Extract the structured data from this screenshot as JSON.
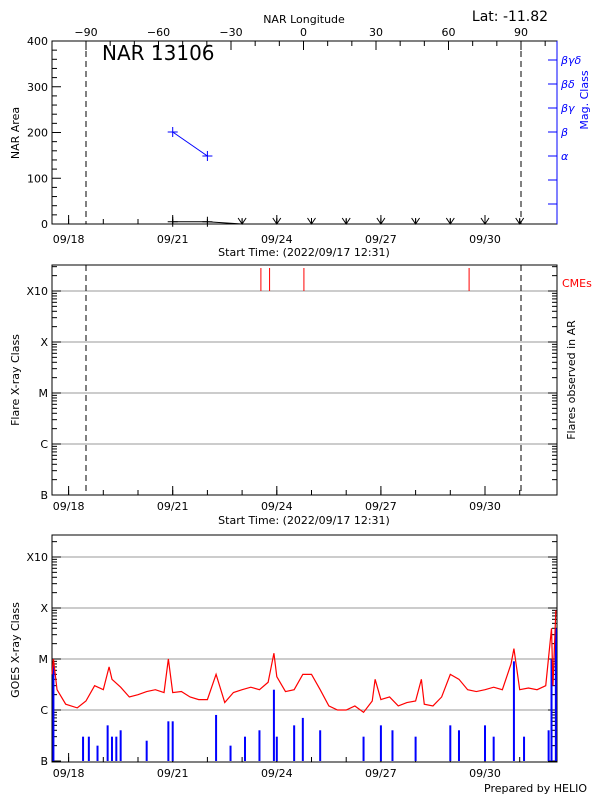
{
  "chart_data": [
    {
      "type": "line",
      "title": "NAR 13106",
      "latitude_label": "Lat: -11.82",
      "top_axis_label": "NAR Longitude",
      "top_ticks": [
        -90,
        -60,
        -30,
        0,
        30,
        60,
        90
      ],
      "ylabel": "NAR Area",
      "ylim": [
        0,
        400
      ],
      "yticks": [
        0,
        100,
        200,
        300,
        400
      ],
      "right_axis_label": "Mag. Class",
      "mag_classes": [
        "α",
        "β",
        "βγ",
        "βδ",
        "βγδ"
      ],
      "xlabel": "Start Time: (2022/09/17 12:31)",
      "xticks": [
        "09/18",
        "09/21",
        "09/24",
        "09/27",
        "09/30"
      ],
      "limb_longitudes": [
        -90,
        90
      ],
      "area_series": [
        [
          "09/21 00:00",
          5
        ],
        [
          "09/22 00:00",
          5
        ],
        [
          "09/23 00:00",
          0
        ]
      ],
      "no_data_markers": [
        "09/23 00:00",
        "09/24 00:00",
        "09/25 00:00",
        "09/26 00:00",
        "09/27 00:00",
        "09/28 00:00",
        "09/29 00:00",
        "09/30 00:00",
        "10/01 00:00"
      ],
      "mag_series": [
        [
          "09/21 00:00",
          "β"
        ],
        [
          "09/22 00:00",
          "α"
        ]
      ],
      "colors": {
        "area": "#000000",
        "mag": "#0000ff"
      }
    },
    {
      "type": "bar",
      "ylabel": "Flare X-ray Class",
      "right_label": "Flares observed in AR",
      "cme_label": "CMEs",
      "yticks": [
        "B",
        "C",
        "M",
        "X",
        "X10"
      ],
      "xlabel": "Start Time: (2022/09/17 12:31)",
      "xticks": [
        "09/18",
        "09/21",
        "09/24",
        "09/27",
        "09/30"
      ],
      "cmes": [
        "09/23 13:00",
        "09/23 19:00",
        "09/24 18:45",
        "09/29 13:00"
      ],
      "flares": [],
      "colors": {
        "cme": "#ff0000"
      }
    },
    {
      "type": "line",
      "ylabel": "GOES X-ray Class",
      "yticks": [
        "B",
        "C",
        "M",
        "X",
        "X10"
      ],
      "xticks": [
        "09/18",
        "09/21",
        "09/24",
        "09/27",
        "09/30"
      ],
      "footer": "Prepared by HELIO",
      "colors": {
        "long": "#ff0000",
        "short": "#0000ff"
      },
      "long_channel": [
        [
          "09/17 12:31",
          5e-06
        ],
        [
          "09/17 13:30",
          1e-05
        ],
        [
          "09/17 16:00",
          2.5e-06
        ],
        [
          "09/17 22:00",
          1.3e-06
        ],
        [
          "09/18 06:00",
          1.1e-06
        ],
        [
          "09/18 12:00",
          1.5e-06
        ],
        [
          "09/18 18:00",
          3e-06
        ],
        [
          "09/19 00:00",
          2.5e-06
        ],
        [
          "09/19 04:00",
          7e-06
        ],
        [
          "09/19 06:00",
          4e-06
        ],
        [
          "09/19 12:00",
          2.8e-06
        ],
        [
          "09/19 18:00",
          1.8e-06
        ],
        [
          "09/20 00:00",
          2e-06
        ],
        [
          "09/20 06:00",
          2.3e-06
        ],
        [
          "09/20 12:00",
          2.5e-06
        ],
        [
          "09/20 18:00",
          2.2e-06
        ],
        [
          "09/20 21:00",
          1e-05
        ],
        [
          "09/21 00:00",
          2.2e-06
        ],
        [
          "09/21 06:00",
          2.3e-06
        ],
        [
          "09/21 12:00",
          1.8e-06
        ],
        [
          "09/21 18:00",
          1.6e-06
        ],
        [
          "09/22 00:00",
          1.6e-06
        ],
        [
          "09/22 06:00",
          5e-06
        ],
        [
          "09/22 12:00",
          1.4e-06
        ],
        [
          "09/22 18:00",
          2.2e-06
        ],
        [
          "09/23 00:00",
          2.5e-06
        ],
        [
          "09/23 06:00",
          2.8e-06
        ],
        [
          "09/23 12:00",
          2.5e-06
        ],
        [
          "09/23 18:00",
          3.5e-06
        ],
        [
          "09/23 22:00",
          1.3e-05
        ],
        [
          "09/24 00:00",
          4.5e-06
        ],
        [
          "09/24 06:00",
          2.3e-06
        ],
        [
          "09/24 12:00",
          2.5e-06
        ],
        [
          "09/24 18:00",
          5e-06
        ],
        [
          "09/25 00:00",
          5e-06
        ],
        [
          "09/25 06:00",
          2.5e-06
        ],
        [
          "09/25 12:00",
          1.2e-06
        ],
        [
          "09/25 18:00",
          1e-06
        ],
        [
          "09/26 00:00",
          1e-06
        ],
        [
          "09/26 06:00",
          1.2e-06
        ],
        [
          "09/26 12:00",
          9e-07
        ],
        [
          "09/26 18:00",
          1.5e-06
        ],
        [
          "09/26 20:00",
          4e-06
        ],
        [
          "09/27 00:00",
          1.6e-06
        ],
        [
          "09/27 06:00",
          1.8e-06
        ],
        [
          "09/27 12:00",
          1.2e-06
        ],
        [
          "09/27 18:00",
          1.4e-06
        ],
        [
          "09/28 00:00",
          1.5e-06
        ],
        [
          "09/28 04:00",
          4e-06
        ],
        [
          "09/28 06:00",
          1.3e-06
        ],
        [
          "09/28 12:00",
          1.2e-06
        ],
        [
          "09/28 18:00",
          1.8e-06
        ],
        [
          "09/29 00:00",
          5e-06
        ],
        [
          "09/29 06:00",
          4e-06
        ],
        [
          "09/29 12:00",
          2.5e-06
        ],
        [
          "09/29 18:00",
          2.3e-06
        ],
        [
          "09/30 00:00",
          2.5e-06
        ],
        [
          "09/30 06:00",
          2.8e-06
        ],
        [
          "09/30 12:00",
          2.5e-06
        ],
        [
          "09/30 18:00",
          8e-06
        ],
        [
          "09/30 20:00",
          1.6e-05
        ],
        [
          "10/01 00:00",
          2.5e-06
        ],
        [
          "10/01 06:00",
          2.7e-06
        ],
        [
          "10/01 12:00",
          2.5e-06
        ],
        [
          "10/01 18:00",
          3e-06
        ],
        [
          "10/01 22:00",
          4e-05
        ],
        [
          "10/01 23:00",
          3e-06
        ],
        [
          "10/02 01:00",
          9e-05
        ]
      ],
      "short_channel": [
        [
          "09/17 13:30",
          8e-06
        ],
        [
          "09/18 10:00",
          3e-07
        ],
        [
          "09/18 14:00",
          3e-07
        ],
        [
          "09/18 20:00",
          2e-07
        ],
        [
          "09/19 03:00",
          5e-07
        ],
        [
          "09/19 06:00",
          3e-07
        ],
        [
          "09/19 09:00",
          3e-07
        ],
        [
          "09/19 12:00",
          4e-07
        ],
        [
          "09/20 06:00",
          2.5e-07
        ],
        [
          "09/20 21:00",
          6e-07
        ],
        [
          "09/21 00:00",
          6e-07
        ],
        [
          "09/22 06:00",
          8e-07
        ],
        [
          "09/22 16:00",
          2e-07
        ],
        [
          "09/23 02:00",
          3e-07
        ],
        [
          "09/23 12:00",
          4e-07
        ],
        [
          "09/23 22:00",
          2.5e-06
        ],
        [
          "09/24 00:00",
          3e-07
        ],
        [
          "09/24 12:00",
          5e-07
        ],
        [
          "09/24 18:00",
          7e-07
        ],
        [
          "09/25 06:00",
          4e-07
        ],
        [
          "09/26 12:00",
          3e-07
        ],
        [
          "09/27 00:00",
          5e-07
        ],
        [
          "09/27 08:00",
          4e-07
        ],
        [
          "09/28 00:00",
          3e-07
        ],
        [
          "09/29 00:00",
          5e-07
        ],
        [
          "09/29 06:00",
          4e-07
        ],
        [
          "09/30 00:00",
          5e-07
        ],
        [
          "09/30 06:00",
          3e-07
        ],
        [
          "09/30 20:00",
          9e-06
        ],
        [
          "10/01 03:00",
          3e-07
        ],
        [
          "10/01 20:00",
          4e-07
        ],
        [
          "10/01 22:00",
          1e-05
        ],
        [
          "10/02 01:00",
          4e-05
        ]
      ]
    }
  ]
}
